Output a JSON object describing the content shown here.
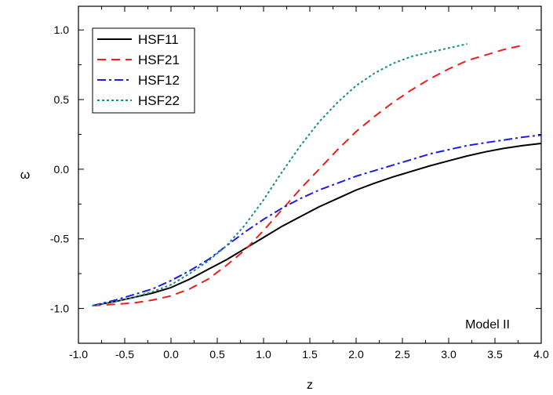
{
  "chart_data": {
    "type": "line",
    "xlabel": "z",
    "ylabel": "ω",
    "xlim": [
      -1.0,
      4.0
    ],
    "ylim": [
      -1.25,
      1.17
    ],
    "x_ticks": [
      -1.0,
      -0.5,
      0.0,
      0.5,
      1.0,
      1.5,
      2.0,
      2.5,
      3.0,
      3.5,
      4.0
    ],
    "x_tick_labels": [
      "-1.0",
      "-0.5",
      "0.0",
      "0.5",
      "1.0",
      "1.5",
      "2.0",
      "2.5",
      "3.0",
      "3.5",
      "4.0"
    ],
    "y_ticks": [
      -1.0,
      -0.5,
      0.0,
      0.5,
      1.0
    ],
    "y_tick_labels": [
      "-1.0",
      "-0.5",
      "0.0",
      "0.5",
      "1.0"
    ],
    "grid": false,
    "legend_position": "top-left",
    "annotation": "Model II",
    "series": [
      {
        "name": "HSF11",
        "color": "#000000",
        "style": "solid",
        "x": [
          -0.85,
          -0.6,
          -0.4,
          -0.2,
          0.0,
          0.2,
          0.4,
          0.6,
          0.8,
          1.0,
          1.2,
          1.4,
          1.6,
          1.8,
          2.0,
          2.2,
          2.4,
          2.6,
          2.8,
          3.0,
          3.2,
          3.4,
          3.6,
          3.8,
          4.0
        ],
        "y": [
          -0.98,
          -0.95,
          -0.92,
          -0.89,
          -0.85,
          -0.79,
          -0.72,
          -0.65,
          -0.57,
          -0.49,
          -0.41,
          -0.34,
          -0.27,
          -0.21,
          -0.15,
          -0.1,
          -0.055,
          -0.015,
          0.025,
          0.06,
          0.095,
          0.125,
          0.15,
          0.17,
          0.185
        ]
      },
      {
        "name": "HSF21",
        "color": "#e8211c",
        "style": "dashed",
        "x": [
          -0.85,
          -0.6,
          -0.4,
          -0.2,
          0.0,
          0.2,
          0.4,
          0.6,
          0.8,
          1.0,
          1.2,
          1.4,
          1.6,
          1.8,
          2.0,
          2.2,
          2.4,
          2.6,
          2.8,
          3.0,
          3.2,
          3.4,
          3.6,
          3.8
        ],
        "y": [
          -0.98,
          -0.97,
          -0.96,
          -0.94,
          -0.91,
          -0.86,
          -0.79,
          -0.69,
          -0.58,
          -0.44,
          -0.29,
          -0.14,
          0.0,
          0.14,
          0.27,
          0.38,
          0.48,
          0.57,
          0.65,
          0.72,
          0.78,
          0.82,
          0.86,
          0.89
        ]
      },
      {
        "name": "HSF12",
        "color": "#1c1ce8",
        "style": "dashdot",
        "x": [
          -0.85,
          -0.6,
          -0.4,
          -0.2,
          0.0,
          0.2,
          0.4,
          0.6,
          0.8,
          1.0,
          1.2,
          1.4,
          1.6,
          1.8,
          2.0,
          2.2,
          2.4,
          2.6,
          2.8,
          3.0,
          3.2,
          3.4,
          3.6,
          3.8,
          4.0
        ],
        "y": [
          -0.98,
          -0.94,
          -0.9,
          -0.86,
          -0.8,
          -0.73,
          -0.65,
          -0.55,
          -0.45,
          -0.36,
          -0.28,
          -0.21,
          -0.15,
          -0.1,
          -0.05,
          -0.01,
          0.03,
          0.07,
          0.11,
          0.14,
          0.17,
          0.19,
          0.21,
          0.23,
          0.245
        ]
      },
      {
        "name": "HSF22",
        "color": "#1a8a8a",
        "style": "dotted",
        "x": [
          -0.85,
          -0.6,
          -0.4,
          -0.2,
          0.0,
          0.2,
          0.4,
          0.6,
          0.8,
          1.0,
          1.2,
          1.4,
          1.6,
          1.8,
          2.0,
          2.2,
          2.4,
          2.6,
          2.8,
          3.0,
          3.2
        ],
        "y": [
          -0.98,
          -0.95,
          -0.92,
          -0.88,
          -0.83,
          -0.75,
          -0.66,
          -0.55,
          -0.4,
          -0.22,
          -0.02,
          0.17,
          0.34,
          0.48,
          0.6,
          0.69,
          0.76,
          0.81,
          0.84,
          0.87,
          0.9
        ]
      }
    ]
  }
}
